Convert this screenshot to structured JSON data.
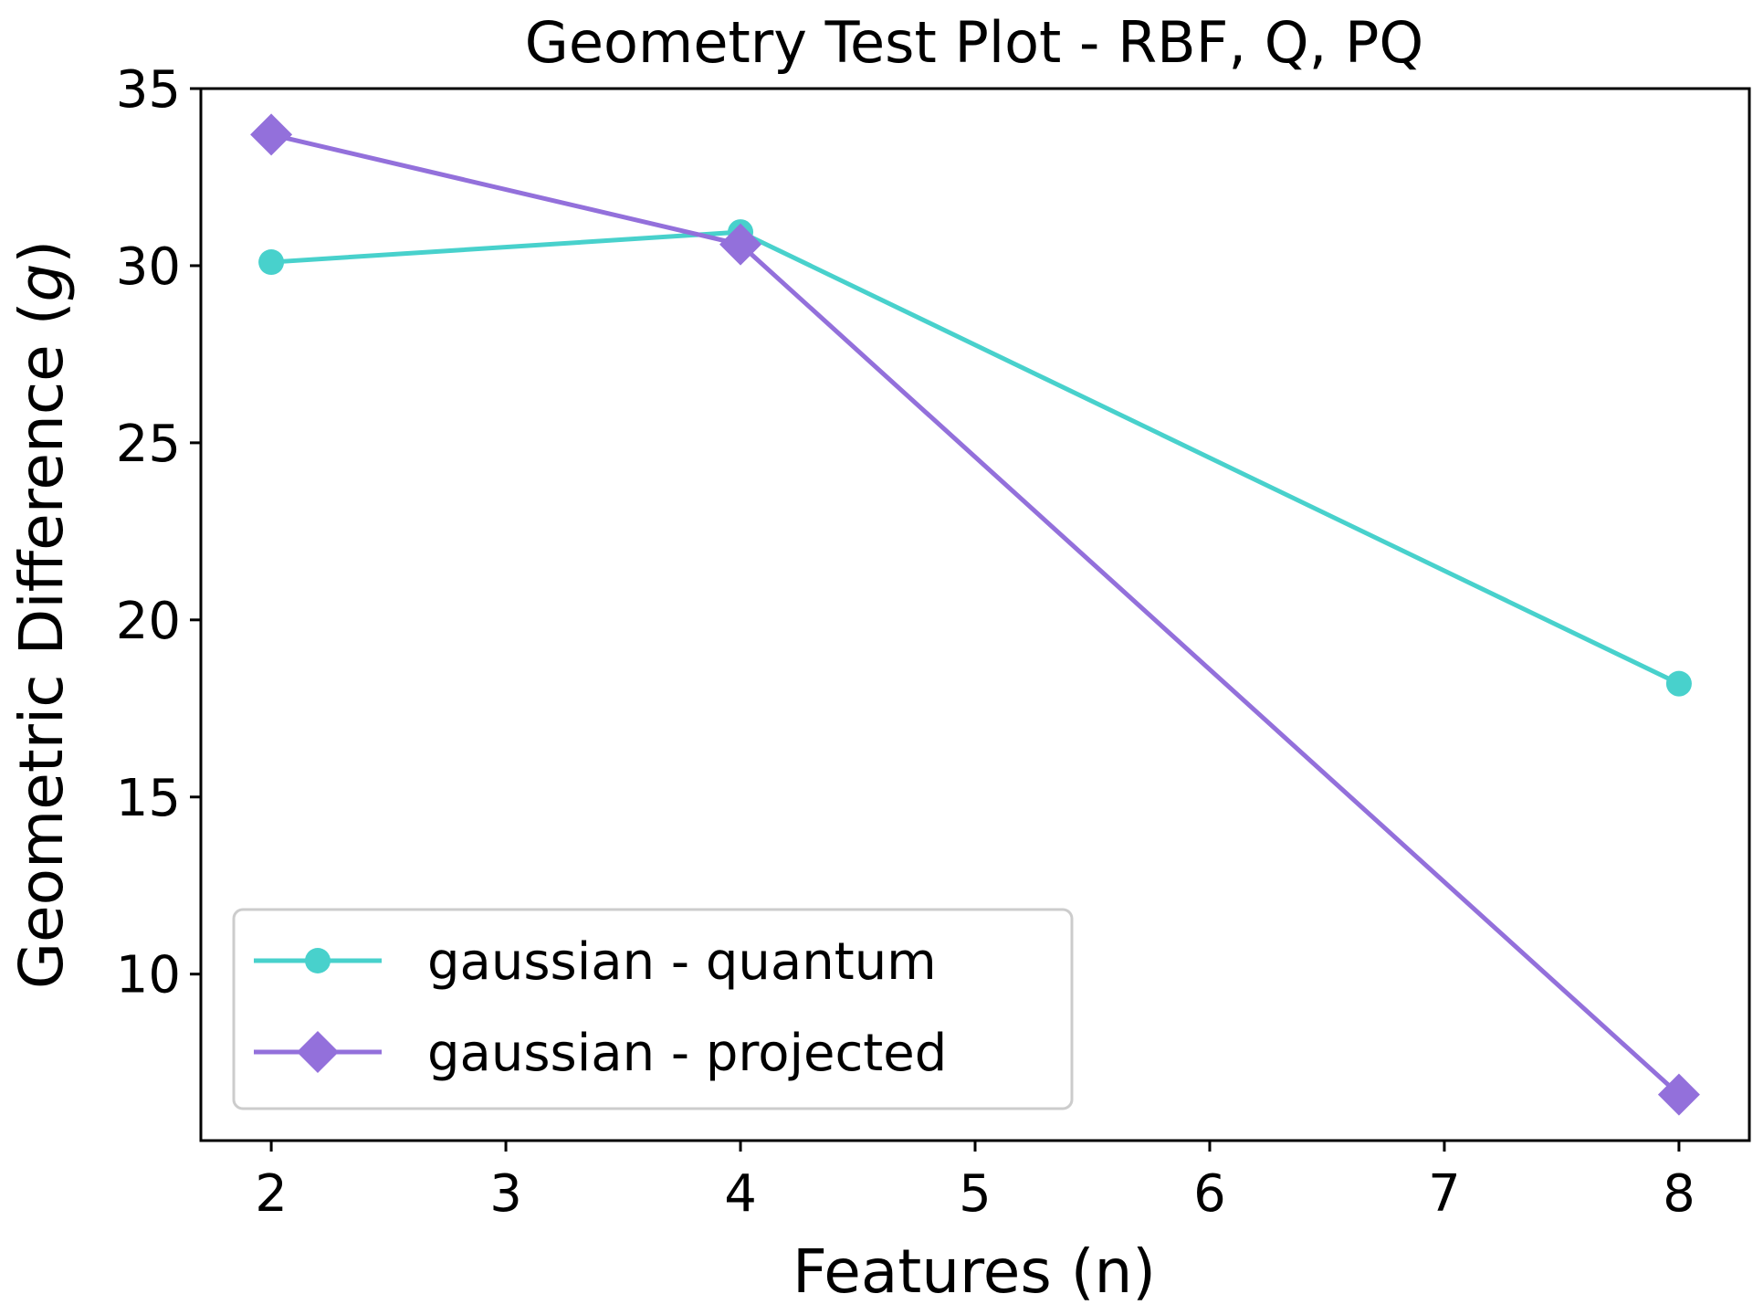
{
  "chart_data": {
    "type": "line",
    "title": "Geometry Test Plot - RBF, Q, PQ",
    "xlabel": "Features (n)",
    "ylabel": "Geometric Difference (",
    "ylabel_var": "g",
    "ylabel_close": ")",
    "xlim": [
      1.7,
      8.3
    ],
    "ylim": [
      5.3,
      35.0
    ],
    "xticks": [
      2,
      3,
      4,
      5,
      6,
      7,
      8
    ],
    "yticks": [
      10,
      15,
      20,
      25,
      30,
      35
    ],
    "grid": false,
    "legend_position": "lower-left",
    "series": [
      {
        "name": "gaussian - quantum",
        "color": "#48d1cc",
        "marker": "circle",
        "x": [
          2,
          4,
          8
        ],
        "y": [
          30.1,
          30.95,
          18.2
        ]
      },
      {
        "name": "gaussian - projected",
        "color": "#9370db",
        "marker": "diamond",
        "x": [
          2,
          4,
          8
        ],
        "y": [
          33.7,
          30.6,
          6.6
        ]
      }
    ]
  }
}
